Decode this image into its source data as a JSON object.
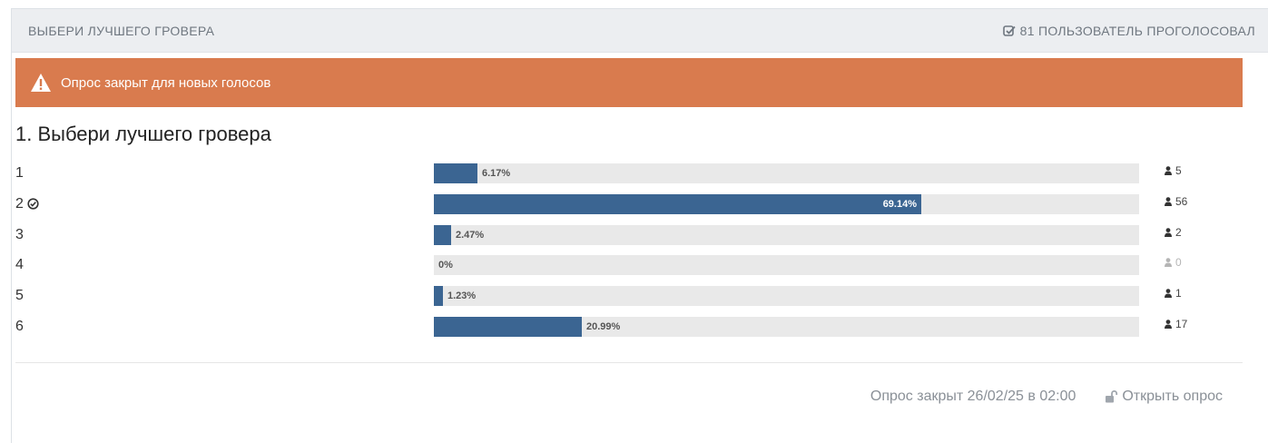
{
  "header": {
    "title": "ВЫБЕРИ ЛУЧШЕГО ГРОВЕРА",
    "voters_text": "81 ПОЛЬЗОВАТЕЛЬ ПРОГОЛОСОВАЛ",
    "voters_icon": "check-square-icon"
  },
  "alert": {
    "text": "Опрос закрыт для новых голосов",
    "icon": "warning-icon",
    "color": "#d97b4e"
  },
  "question": {
    "title": "1. Выбери лучшего гровера",
    "options": [
      {
        "label": "1",
        "percent": 6.17,
        "percent_text": "6.17%",
        "votes": "5",
        "my_vote": false
      },
      {
        "label": "2",
        "percent": 69.14,
        "percent_text": "69.14%",
        "votes": "56",
        "my_vote": true
      },
      {
        "label": "3",
        "percent": 2.47,
        "percent_text": "2.47%",
        "votes": "2",
        "my_vote": false
      },
      {
        "label": "4",
        "percent": 0,
        "percent_text": "0%",
        "votes": "0",
        "my_vote": false
      },
      {
        "label": "5",
        "percent": 1.23,
        "percent_text": "1.23%",
        "votes": "1",
        "my_vote": false
      },
      {
        "label": "6",
        "percent": 20.99,
        "percent_text": "20.99%",
        "votes": "17",
        "my_vote": false
      }
    ]
  },
  "footer": {
    "closed_text": "Опрос закрыт 26/02/25 в 02:00",
    "reopen_label": "Открыть опрос",
    "reopen_icon": "unlock-icon"
  },
  "colors": {
    "bar": "#3b6592",
    "track": "#e9e9e9",
    "header_bg": "#eceef1"
  }
}
